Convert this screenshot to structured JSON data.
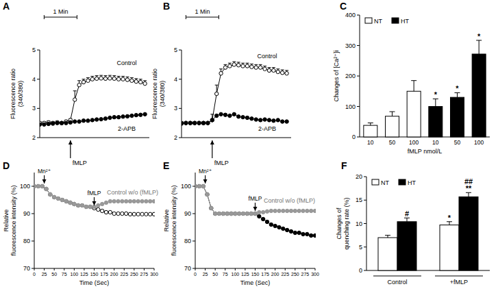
{
  "chart_data": [
    {
      "type": "line",
      "title": "A",
      "x": [
        0,
        8,
        16,
        24,
        32,
        40,
        48,
        56,
        64,
        72,
        80,
        88,
        96,
        104,
        112,
        120,
        128,
        136,
        144,
        152,
        160,
        168,
        176,
        184,
        192
      ],
      "xlim": [
        0,
        200
      ],
      "ylim": [
        2,
        5
      ],
      "yticks": [
        2,
        3,
        4,
        5
      ],
      "tick_labels": "y",
      "grid": false,
      "y_label": [
        "Fluorescence ratio",
        "(340/380)"
      ],
      "scale_bar": {
        "label": "1 Min",
        "start": 8,
        "end": 68
      },
      "annotations": [
        {
          "text": "fMLP",
          "x": 56
        }
      ],
      "series": [
        {
          "name": "Control",
          "color": "#000000",
          "marker": "open-circle",
          "values": [
            2.5,
            2.5,
            2.52,
            2.5,
            2.52,
            2.5,
            2.55,
            2.6,
            3.3,
            3.8,
            3.9,
            3.95,
            4.0,
            4.02,
            4.03,
            4.02,
            4.03,
            4.02,
            4.0,
            4.0,
            3.98,
            3.95,
            3.92,
            3.9,
            3.85
          ],
          "errors": [
            0.05,
            0.05,
            0.05,
            0.05,
            0.05,
            0.05,
            0.05,
            0.05,
            0.3,
            0.15,
            0.1,
            0.1,
            0.1,
            0.1,
            0.1,
            0.1,
            0.1,
            0.1,
            0.1,
            0.1,
            0.1,
            0.1,
            0.1,
            0.1,
            0.1
          ]
        },
        {
          "name": "2-APB",
          "color": "#000000",
          "marker": "filled-circle",
          "values": [
            2.45,
            2.45,
            2.47,
            2.48,
            2.5,
            2.5,
            2.5,
            2.52,
            2.55,
            2.55,
            2.58,
            2.58,
            2.6,
            2.62,
            2.63,
            2.65,
            2.68,
            2.7,
            2.7,
            2.72,
            2.73,
            2.75,
            2.77,
            2.78,
            2.8
          ]
        }
      ]
    },
    {
      "type": "line",
      "title": "B",
      "x": [
        0,
        8,
        16,
        24,
        32,
        40,
        48,
        56,
        64,
        72,
        80,
        88,
        96,
        104,
        112,
        120,
        128,
        136,
        144,
        152,
        160,
        168,
        176,
        184,
        192
      ],
      "xlim": [
        0,
        200
      ],
      "ylim": [
        2,
        5
      ],
      "yticks": [
        2,
        3,
        4,
        5
      ],
      "tick_labels": "y",
      "grid": false,
      "y_label": [
        "Fluorescence ratio",
        "(340/380)"
      ],
      "scale_bar": {
        "label": "1 Min",
        "start": 8,
        "end": 68
      },
      "annotations": [
        {
          "text": "fMLP",
          "x": 56
        }
      ],
      "series": [
        {
          "name": "Control",
          "color": "#000000",
          "marker": "open-circle",
          "values": [
            2.5,
            2.5,
            2.5,
            2.5,
            2.5,
            2.5,
            2.5,
            2.6,
            3.5,
            4.2,
            4.4,
            4.45,
            4.5,
            4.48,
            4.45,
            4.45,
            4.42,
            4.4,
            4.4,
            4.35,
            4.3,
            4.3,
            4.25,
            4.22,
            4.2
          ],
          "errors": [
            0.05,
            0.05,
            0.05,
            0.05,
            0.05,
            0.05,
            0.05,
            0.2,
            0.3,
            0.15,
            0.1,
            0.1,
            0.1,
            0.1,
            0.1,
            0.1,
            0.1,
            0.1,
            0.1,
            0.1,
            0.1,
            0.1,
            0.1,
            0.1,
            0.1
          ]
        },
        {
          "name": "2-APB",
          "color": "#000000",
          "marker": "filled-circle",
          "values": [
            2.48,
            2.5,
            2.5,
            2.5,
            2.5,
            2.5,
            2.5,
            2.6,
            2.75,
            2.8,
            2.78,
            2.75,
            2.8,
            2.72,
            2.7,
            2.68,
            2.65,
            2.62,
            2.6,
            2.62,
            2.6,
            2.58,
            2.6,
            2.55,
            2.55
          ]
        }
      ]
    },
    {
      "type": "bar",
      "title": "C",
      "categories": [
        "10",
        "50",
        "100",
        "10",
        "50",
        "100"
      ],
      "x_label": "fMLP nmol/L",
      "y_label": [
        "Changes of [Ca²⁺]i"
      ],
      "ylim": [
        0,
        400
      ],
      "yticks": [
        0,
        100,
        200,
        300,
        400
      ],
      "legend": "top-left",
      "grid": false,
      "series": [
        {
          "name": "NT",
          "color": "#ffffff",
          "values": [
            38,
            68,
            150,
            null,
            null,
            null
          ],
          "errors": [
            8,
            15,
            35,
            null,
            null,
            null
          ]
        },
        {
          "name": "HT",
          "color": "#000000",
          "values": [
            null,
            null,
            null,
            100,
            130,
            272
          ],
          "errors": [
            null,
            null,
            null,
            25,
            15,
            45
          ],
          "significance": [
            [],
            [],
            [],
            [
              "*"
            ],
            [
              "*"
            ],
            [
              "*"
            ]
          ]
        }
      ]
    },
    {
      "type": "line",
      "title": "D",
      "x": [
        0,
        10,
        20,
        30,
        40,
        50,
        60,
        70,
        80,
        90,
        100,
        110,
        120,
        130,
        140,
        150,
        160,
        170,
        180,
        190,
        200,
        210,
        220,
        230,
        240,
        250,
        260,
        270,
        280,
        290,
        300
      ],
      "xlim": [
        0,
        300
      ],
      "xticks": [
        0,
        25,
        50,
        75,
        100,
        125,
        150,
        175,
        200,
        225,
        250,
        275,
        300
      ],
      "ylim": [
        70,
        105
      ],
      "yticks": [
        70,
        80,
        90,
        100
      ],
      "grid": false,
      "x_label": "Time (Sec)",
      "y_label": [
        "Relative",
        "fluorescence intensity (%)"
      ],
      "annotations": [
        {
          "text": "Mn²⁺",
          "x": 25
        },
        {
          "text": "fMLP",
          "x": 150
        }
      ],
      "series": [
        {
          "color": "#000000",
          "marker": "open-circle",
          "values": [
            100,
            100,
            100,
            99,
            97,
            96,
            95.5,
            95,
            94.5,
            94,
            93.5,
            93,
            93,
            92.5,
            92.5,
            92,
            91.5,
            91,
            90.5,
            90.5,
            90,
            90,
            90,
            90,
            89.8,
            89.8,
            89.8,
            89.8,
            89.8,
            89.8,
            89.8
          ]
        },
        {
          "name": "Control w/o (fMLP)",
          "color": "#999999",
          "marker": "filled-circle",
          "values": [
            100,
            100,
            100,
            99,
            97,
            96,
            95.5,
            95,
            94.5,
            94,
            93.5,
            93,
            93,
            92.5,
            92.5,
            92.5,
            93,
            93.5,
            94,
            94.5,
            94.5,
            94.5,
            94.5,
            94.5,
            94.5,
            94.5,
            94.5,
            94.5,
            94.5,
            94.5,
            94.5
          ]
        }
      ]
    },
    {
      "type": "line",
      "title": "E",
      "x": [
        0,
        10,
        20,
        30,
        40,
        50,
        60,
        70,
        80,
        90,
        100,
        110,
        120,
        130,
        140,
        150,
        160,
        170,
        180,
        190,
        200,
        210,
        220,
        230,
        240,
        250,
        260,
        270,
        280,
        290,
        300
      ],
      "xlim": [
        0,
        300
      ],
      "xticks": [
        0,
        25,
        50,
        75,
        100,
        125,
        150,
        175,
        200,
        225,
        250,
        275,
        300
      ],
      "ylim": [
        70,
        105
      ],
      "yticks": [
        70,
        80,
        90,
        100
      ],
      "grid": false,
      "x_label": "Time (Sec)",
      "y_label": [
        "Relative",
        "fluorescence intensity (%)"
      ],
      "annotations": [
        {
          "text": "Mn²⁺",
          "x": 25
        },
        {
          "text": "fMLP",
          "x": 150
        }
      ],
      "series": [
        {
          "color": "#000000",
          "marker": "filled-circle",
          "values": [
            100,
            100,
            100,
            97,
            92,
            90,
            90,
            90,
            90,
            90,
            90,
            90,
            90,
            90,
            90,
            90,
            89,
            88,
            87,
            86,
            85.5,
            85,
            84.5,
            84,
            83.5,
            83,
            83,
            82.5,
            82.5,
            82,
            82
          ]
        },
        {
          "name": "Control w/o (fMLP)",
          "color": "#999999",
          "marker": "filled-circle",
          "values": [
            100,
            100,
            100,
            97,
            92,
            90,
            90,
            90,
            90,
            90,
            90,
            90,
            90,
            90,
            90,
            90,
            90.5,
            90.5,
            90.8,
            91,
            91,
            91,
            91,
            91,
            91,
            91,
            91,
            91,
            91,
            91,
            91
          ]
        }
      ]
    },
    {
      "type": "bar",
      "title": "F",
      "categories": [
        "Control",
        "+fMLP"
      ],
      "y_label": [
        "Changes of",
        "quenching rate (%)"
      ],
      "ylim": [
        0,
        20
      ],
      "yticks": [
        0,
        5,
        10,
        15,
        20
      ],
      "legend": "top-left",
      "grid": false,
      "series": [
        {
          "name": "NT",
          "color": "#ffffff",
          "values": [
            7,
            9.7
          ],
          "errors": [
            0.5,
            0.7
          ],
          "significance": [
            [],
            [
              "*"
            ]
          ]
        },
        {
          "name": "HT",
          "color": "#000000",
          "values": [
            10.4,
            15.7
          ],
          "errors": [
            0.8,
            0.9
          ],
          "significance": [
            [
              "#"
            ],
            [
              "##",
              "**"
            ]
          ]
        }
      ]
    }
  ]
}
